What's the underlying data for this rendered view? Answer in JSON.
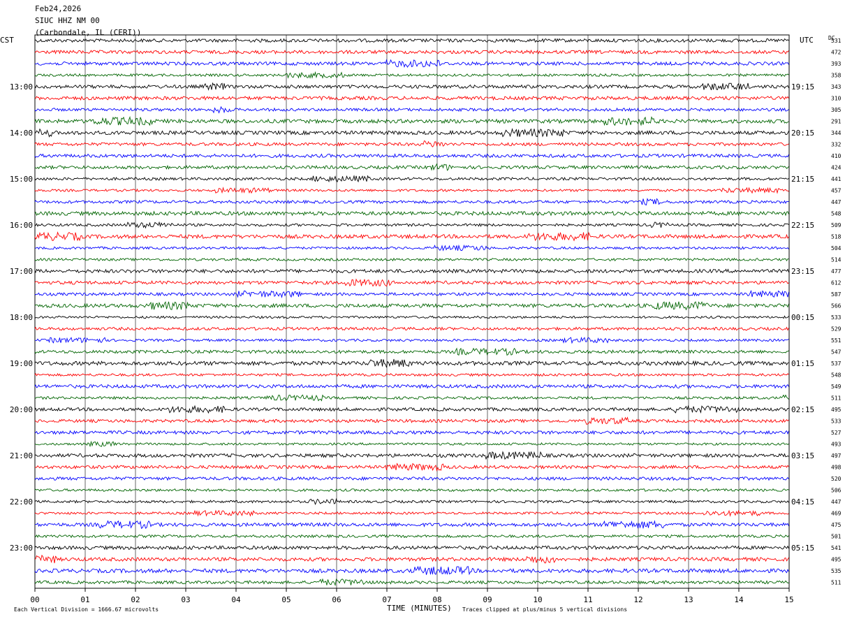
{
  "header": {
    "date": "Feb24,2026",
    "station": "SIUC HHZ NM 00",
    "location": "(Carbondale, IL (CERI))"
  },
  "left_tz": "CST",
  "right_tz": "UTC",
  "dc_label": "DC",
  "footer": {
    "scale_note": "Each Vertical Division = 1666.67 microvolts",
    "clip_note": "Traces clipped at plus/minus 5 vertical divisions"
  },
  "colors": [
    "#000000",
    "#ff0000",
    "#0000ff",
    "#006400"
  ],
  "chart_data": {
    "type": "line",
    "xlabel": "TIME (MINUTES)",
    "xlim": [
      0,
      15
    ],
    "x_ticks": [
      "00",
      "01",
      "02",
      "03",
      "04",
      "05",
      "06",
      "07",
      "08",
      "09",
      "10",
      "11",
      "12",
      "13",
      "14",
      "15"
    ],
    "left_hour_labels": [
      "13:00",
      "14:00",
      "15:00",
      "16:00",
      "17:00",
      "18:00",
      "19:00",
      "20:00",
      "21:00",
      "22:00",
      "23:00"
    ],
    "right_hour_labels": [
      "19:15",
      "20:15",
      "21:15",
      "22:15",
      "23:15",
      "00:15",
      "01:15",
      "02:15",
      "03:15",
      "04:15",
      "05:15"
    ],
    "dc_offsets": [
      531,
      472,
      393,
      358,
      343,
      310,
      305,
      291,
      344,
      332,
      410,
      424,
      441,
      457,
      447,
      548,
      509,
      518,
      504,
      514,
      477,
      612,
      587,
      566,
      533,
      529,
      551,
      547,
      537,
      548,
      549,
      511,
      495,
      533,
      527,
      493,
      497,
      498,
      520,
      506,
      447,
      469,
      475,
      501,
      541,
      495,
      535,
      511
    ],
    "trace_count": 48
  }
}
